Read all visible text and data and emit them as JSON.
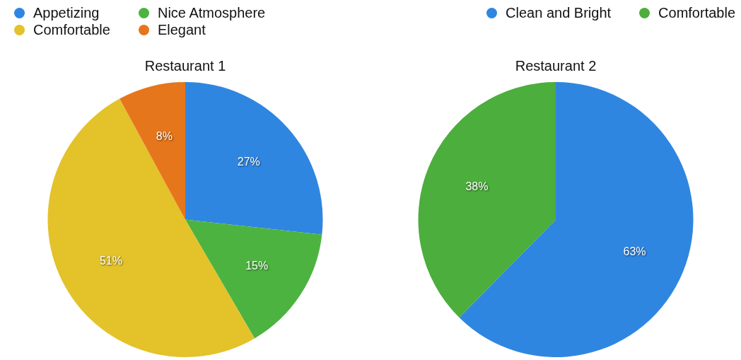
{
  "chart_data": [
    {
      "type": "pie",
      "title": "Restaurant 1",
      "categories": [
        "Appetizing",
        "Nice Atmosphere",
        "Comfortable",
        "Elegant"
      ],
      "values": [
        27,
        15,
        51,
        8
      ],
      "value_labels": [
        "27%",
        "15%",
        "51%",
        "8%"
      ],
      "colors": [
        "#2f86e0",
        "#4cb340",
        "#e3c22a",
        "#e6761c"
      ],
      "legend": "top left"
    },
    {
      "type": "pie",
      "title": "Restaurant 2",
      "categories": [
        "Clean and Bright",
        "Comfortable"
      ],
      "values": [
        63,
        38
      ],
      "value_labels": [
        "63%",
        "38%"
      ],
      "colors": [
        "#2f86e0",
        "#4cae3c"
      ],
      "legend": "top right"
    }
  ]
}
